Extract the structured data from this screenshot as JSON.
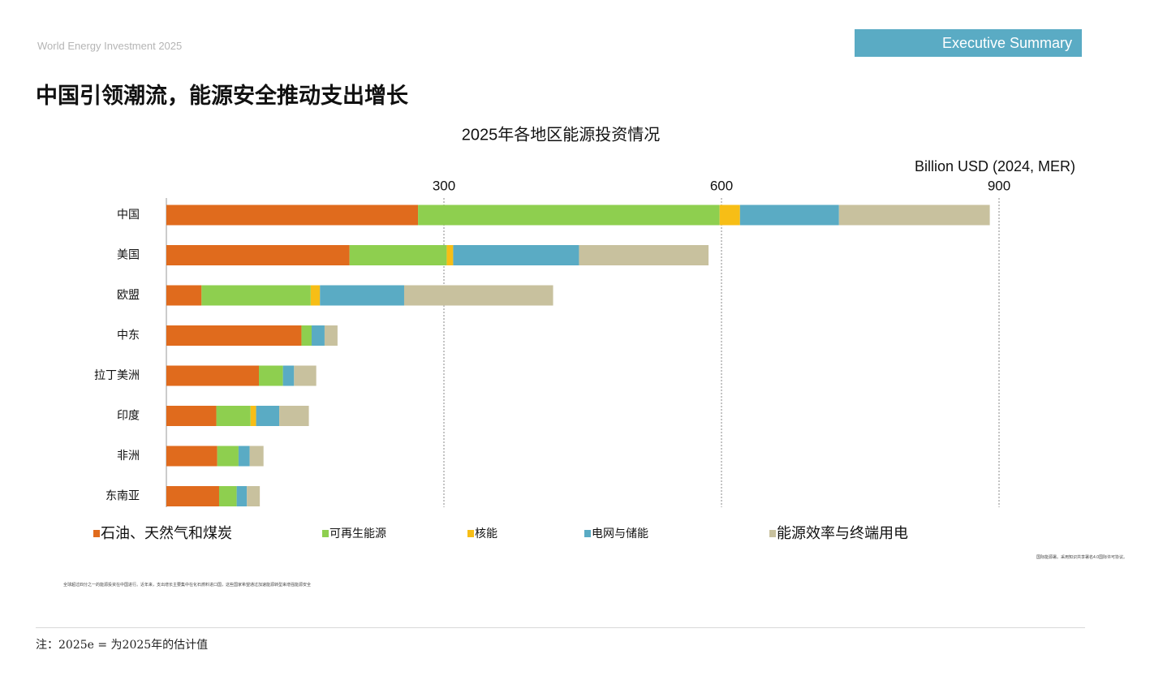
{
  "header": {
    "report": "World Energy Investment 2025",
    "section": "Executive Summary"
  },
  "headline": "中国引领潮流，能源安全推动支出增长",
  "chart_data": {
    "type": "stacked-bar-horizontal",
    "title": "2025年各地区能源投资情况",
    "unit_label": "Billion USD (2024, MER)",
    "categories": [
      "中国",
      "美国",
      "欧盟",
      "中东",
      "拉丁美洲",
      "印度",
      "非洲",
      "东南亚"
    ],
    "series": [
      {
        "name": "石油、天然气和煤炭",
        "color": "#e06b1d",
        "values": [
          272,
          198,
          38,
          146,
          100,
          54,
          55,
          57
        ]
      },
      {
        "name": "可再生能源",
        "color": "#8ecf4f",
        "values": [
          326,
          105,
          118,
          11,
          26,
          37,
          23,
          19
        ]
      },
      {
        "name": "核能",
        "color": "#f7be16",
        "values": [
          22,
          7,
          10,
          0,
          0,
          6,
          0,
          0
        ]
      },
      {
        "name": "电网与储能",
        "color": "#5aabc4",
        "values": [
          107,
          136,
          91,
          14,
          12,
          25,
          12,
          11
        ]
      },
      {
        "name": "能源效率与终端用电",
        "color": "#c8c19e",
        "values": [
          163,
          140,
          161,
          14,
          24,
          32,
          15,
          14
        ]
      }
    ],
    "xlim": [
      0,
      900
    ],
    "xticks": [
      300,
      600,
      900
    ],
    "grid": true
  },
  "notes": {
    "license": "国际能源署。采用知识共享署名4.0国际许可协议。",
    "caption": "全球超过四分之一的能源投资在中国进行。近年来，支出增长主要集中在化石燃料进口国，这些国家希望通过加速能源转型来增强能源安全",
    "footnote": "注：2025e = 为2025年的估计值"
  }
}
